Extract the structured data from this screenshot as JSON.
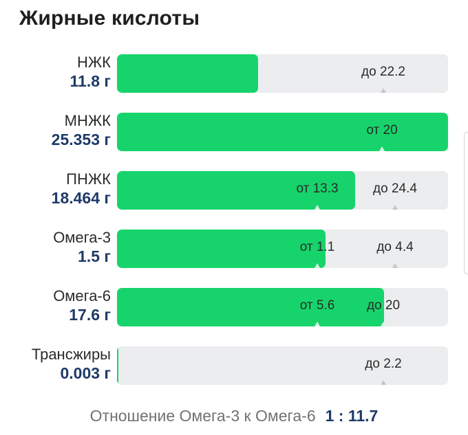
{
  "title": "Жирные кислоты",
  "rows": [
    {
      "name": "НЖК",
      "amount": "11.8 г",
      "fill_ratio": 0.427,
      "marks": [
        {
          "text": "до 22.2",
          "pos_ratio": 0.805
        }
      ]
    },
    {
      "name": "МНЖК",
      "amount": "25.353 г",
      "fill_ratio": 1.0,
      "marks": [
        {
          "text": "от 20",
          "pos_ratio": 0.8
        }
      ]
    },
    {
      "name": "ПНЖК",
      "amount": "18.464 г",
      "fill_ratio": 0.719,
      "marks": [
        {
          "text": "от 13.3",
          "pos_ratio": 0.605
        },
        {
          "text": "до 24.4",
          "pos_ratio": 0.84
        }
      ]
    },
    {
      "name": "Омега-3",
      "amount": "1.5 г",
      "fill_ratio": 0.629,
      "marks": [
        {
          "text": "от 1.1",
          "pos_ratio": 0.605
        },
        {
          "text": "до 4.4",
          "pos_ratio": 0.84
        }
      ]
    },
    {
      "name": "Омега-6",
      "amount": "17.6 г",
      "fill_ratio": 0.806,
      "marks": [
        {
          "text": "от 5.6",
          "pos_ratio": 0.605
        },
        {
          "text": "до 20",
          "pos_ratio": 0.805
        }
      ]
    },
    {
      "name": "Трансжиры",
      "amount": "0.003 г",
      "fill_ratio": 0.003,
      "marks": [
        {
          "text": "до 2.2",
          "pos_ratio": 0.805
        }
      ]
    }
  ],
  "ratio": {
    "label": "Отношение Омега-3 к Омега-6",
    "value": "1 : 11.7"
  }
}
